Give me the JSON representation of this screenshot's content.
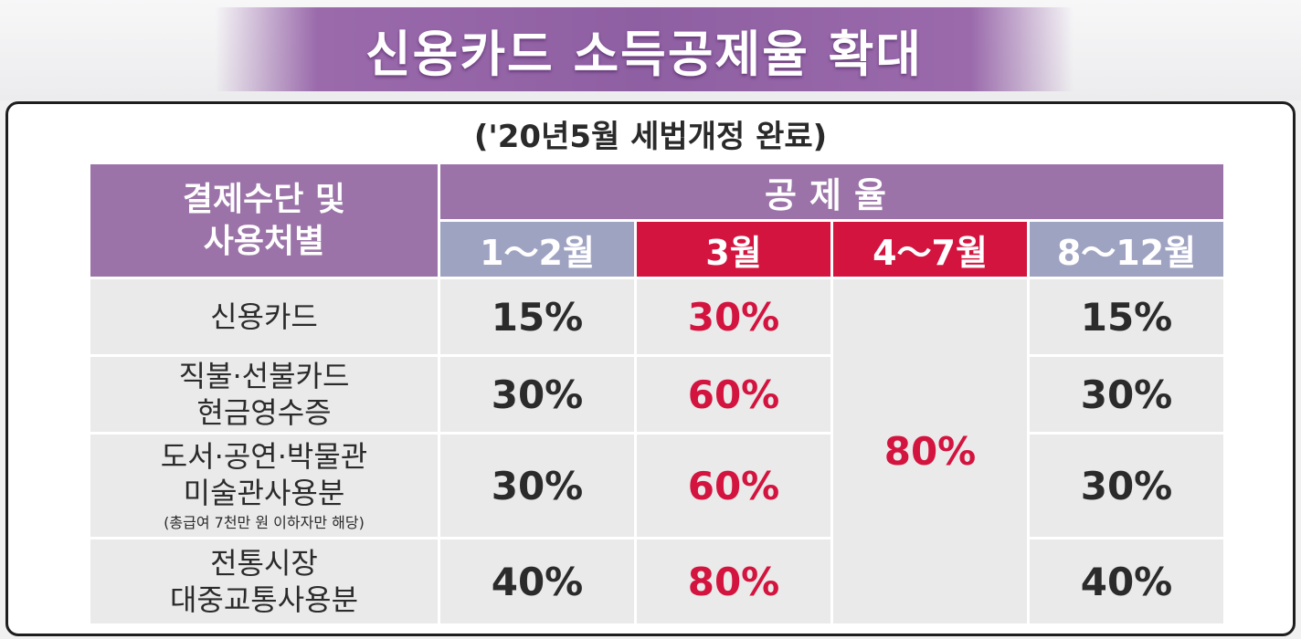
{
  "title": "신용카드 소득공제율 확대",
  "subtitle": "('20년5월 세법개정 완료)",
  "table": {
    "method_header_line1": "결제수단 및",
    "method_header_line2": "사용처별",
    "rate_header": "공제율",
    "periods": [
      "1～2월",
      "3월",
      "4～7월",
      "8～12월"
    ],
    "rows": [
      {
        "label_line1": "신용카드",
        "label_line2": "",
        "note": "",
        "jan_feb": "15%",
        "mar": "30%",
        "aug_dec": "15%"
      },
      {
        "label_line1": "직불·선불카드",
        "label_line2": "현금영수증",
        "note": "",
        "jan_feb": "30%",
        "mar": "60%",
        "aug_dec": "30%"
      },
      {
        "label_line1": "도서·공연·박물관",
        "label_line2": "미술관사용분",
        "note": "(총급여 7천만 원 이하자만 해당)",
        "jan_feb": "30%",
        "mar": "60%",
        "aug_dec": "30%"
      },
      {
        "label_line1": "전통시장",
        "label_line2": "대중교통사용분",
        "note": "",
        "jan_feb": "40%",
        "mar": "80%",
        "aug_dec": "40%"
      }
    ],
    "apr_jul_merged": "80%"
  },
  "colors": {
    "header_purple": "#9b73a8",
    "period_blue": "#9fa3c2",
    "highlight_red": "#d3143f",
    "cell_gray": "#eaeaea"
  }
}
